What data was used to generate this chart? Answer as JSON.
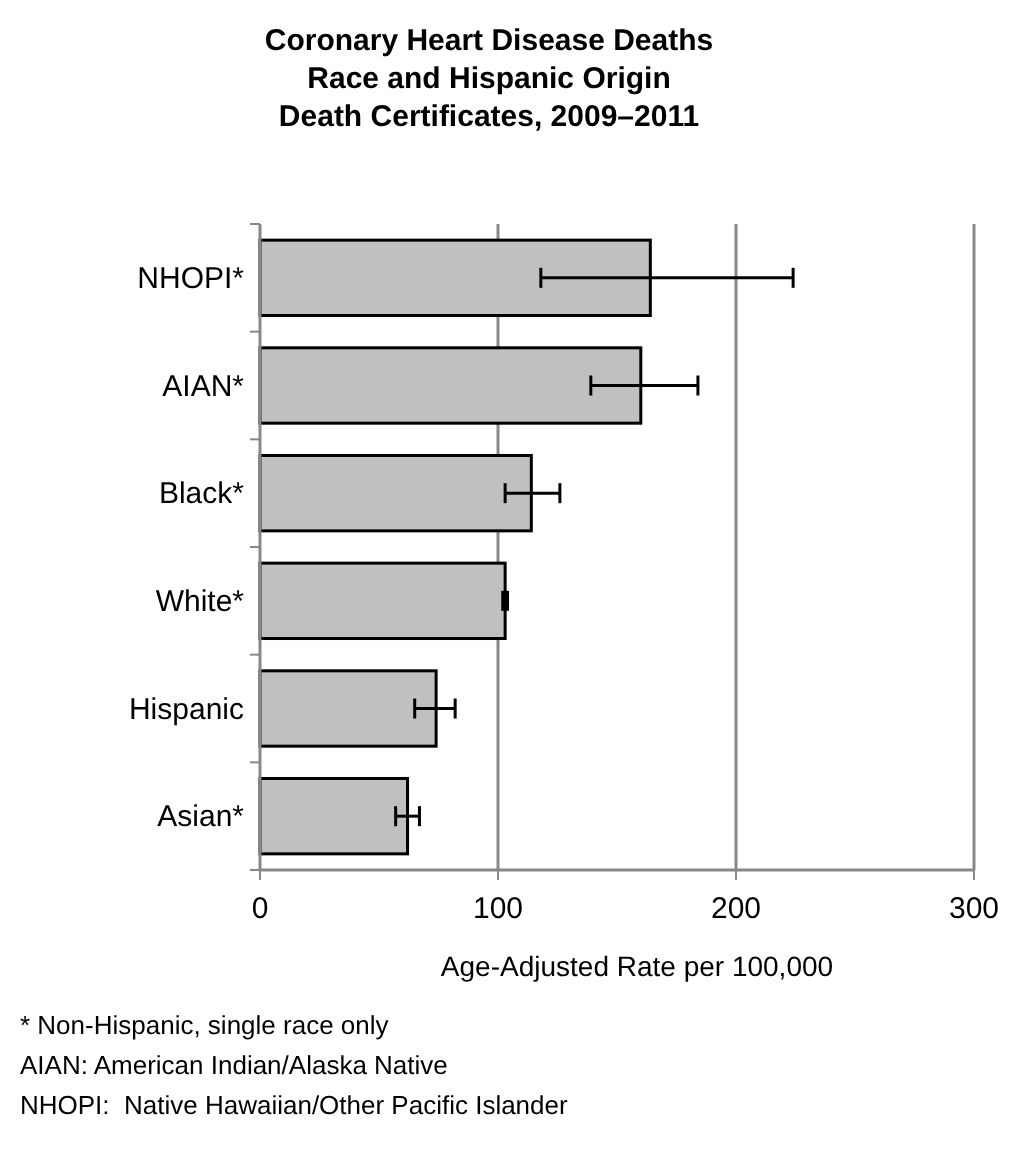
{
  "chart_data": {
    "type": "bar",
    "orientation": "horizontal",
    "title": "Coronary Heart Disease Deaths\nRace and Hispanic Origin\nDeath Certificates, 2009–2011",
    "categories": [
      "NHOPI*",
      "AIAN*",
      "Black*",
      "White*",
      "Hispanic",
      "Asian*"
    ],
    "values": [
      164,
      160,
      114,
      103,
      74,
      62
    ],
    "errors": [
      [
        118,
        224
      ],
      [
        139,
        184
      ],
      [
        103,
        126
      ],
      [
        102,
        104
      ],
      [
        65,
        82
      ],
      [
        57,
        67
      ]
    ],
    "color": "#c0c0c0",
    "xlim": [
      0,
      300
    ],
    "xticks": [
      0,
      100,
      200,
      300
    ],
    "grid": "x",
    "xlabel": "Age-Adjusted Rate per 100,000",
    "annotations": [
      "* Non-Hispanic, single race only",
      "AIAN: American Indian/Alaska Native",
      "NHOPI:  Native Hawaiian/Other Pacific Islander"
    ]
  }
}
